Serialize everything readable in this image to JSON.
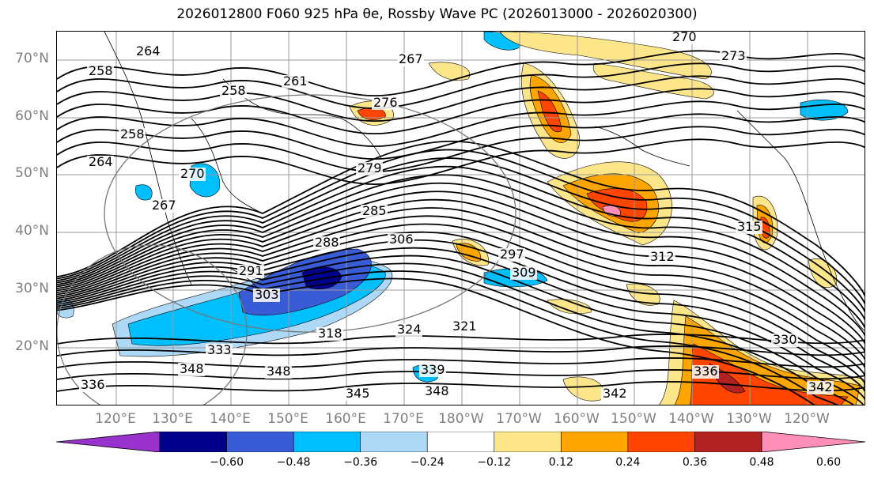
{
  "title": "2026012800 F060 925 hPa θe, Rossby Wave PC (2026013000 - 2026020300)",
  "map": {
    "lat_labels": [
      "70°N",
      "60°N",
      "50°N",
      "40°N",
      "30°N",
      "20°N"
    ],
    "lon_labels": [
      "120°E",
      "130°E",
      "140°E",
      "150°E",
      "160°E",
      "170°E",
      "180°W",
      "170°W",
      "160°W",
      "150°W",
      "140°W",
      "130°W",
      "120°W"
    ],
    "contour_labels": [
      "270",
      "267",
      "264",
      "261",
      "258",
      "258",
      "258",
      "264",
      "267",
      "270",
      "273",
      "276",
      "279",
      "285",
      "288",
      "291",
      "297",
      "303",
      "306",
      "309",
      "312",
      "315",
      "318",
      "321",
      "324",
      "330",
      "333",
      "336",
      "336",
      "339",
      "342",
      "342",
      "345",
      "348",
      "348",
      "348"
    ]
  },
  "colorbar": {
    "ticks": [
      "−0.60",
      "−0.48",
      "−0.36",
      "−0.24",
      "−0.12",
      "0.12",
      "0.24",
      "0.36",
      "0.48",
      "0.60"
    ],
    "colors": [
      "#9932cc",
      "#00008b",
      "#3a5bd6",
      "#00bfff",
      "#add8f6",
      "#ffffff",
      "#fde58a",
      "#ffa500",
      "#ff4500",
      "#b22222",
      "#ff8fb8"
    ]
  }
}
